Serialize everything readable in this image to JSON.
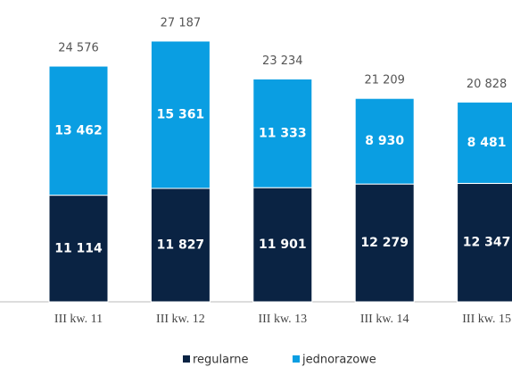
{
  "chart_data": {
    "type": "stacked_bar",
    "categories": [
      "III kw. 11",
      "III kw. 12",
      "III kw. 13",
      "III kw. 14",
      "III kw. 15"
    ],
    "series": [
      {
        "name": "regularne",
        "color": "#0a2343",
        "values": [
          11114,
          11827,
          11901,
          12279,
          12347
        ],
        "value_labels": [
          "11 114",
          "11 827",
          "11 901",
          "12 279",
          "12 347"
        ]
      },
      {
        "name": "jednorazowe",
        "color": "#0a9ee2",
        "values": [
          13462,
          15361,
          11333,
          8930,
          8481
        ],
        "value_labels": [
          "13 462",
          "15 361",
          "11 333",
          "8 930",
          "8 481"
        ]
      }
    ],
    "totals": [
      24576,
      27187,
      23234,
      21209,
      20828
    ],
    "total_labels": [
      "24 576",
      "27 187",
      "23 234",
      "21 209",
      "20 828"
    ]
  }
}
